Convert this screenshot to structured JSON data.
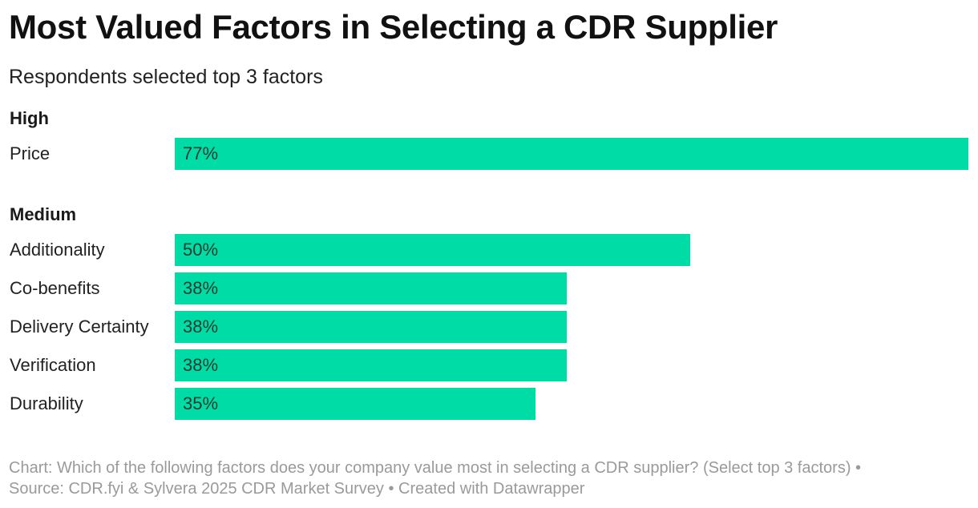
{
  "title": "Most Valued Factors in Selecting a CDR Supplier",
  "subtitle": "Respondents selected top 3 factors",
  "footer": {
    "line1": "Chart: Which of the following factors does your company value most in selecting a CDR supplier? (Select top 3 factors) •",
    "line2": "Source: CDR.fyi & Sylvera 2025 CDR Market Survey • Created with Datawrapper"
  },
  "colors": {
    "bar": "#00dca6"
  },
  "chart_data": {
    "type": "bar",
    "orientation": "horizontal",
    "title": "Most Valued Factors in Selecting a CDR Supplier",
    "subtitle": "Respondents selected top 3 factors",
    "groups": [
      {
        "name": "High",
        "categories": [
          "Price"
        ],
        "values": [
          77
        ],
        "labels": [
          "77%"
        ]
      },
      {
        "name": "Medium",
        "categories": [
          "Additionality",
          "Co-benefits",
          "Delivery Certainty",
          "Verification",
          "Durability"
        ],
        "values": [
          50,
          38,
          38,
          38,
          35
        ],
        "labels": [
          "50%",
          "38%",
          "38%",
          "38%",
          "35%"
        ]
      }
    ],
    "xlim": [
      0,
      77
    ],
    "grid": false,
    "legend": "none"
  }
}
